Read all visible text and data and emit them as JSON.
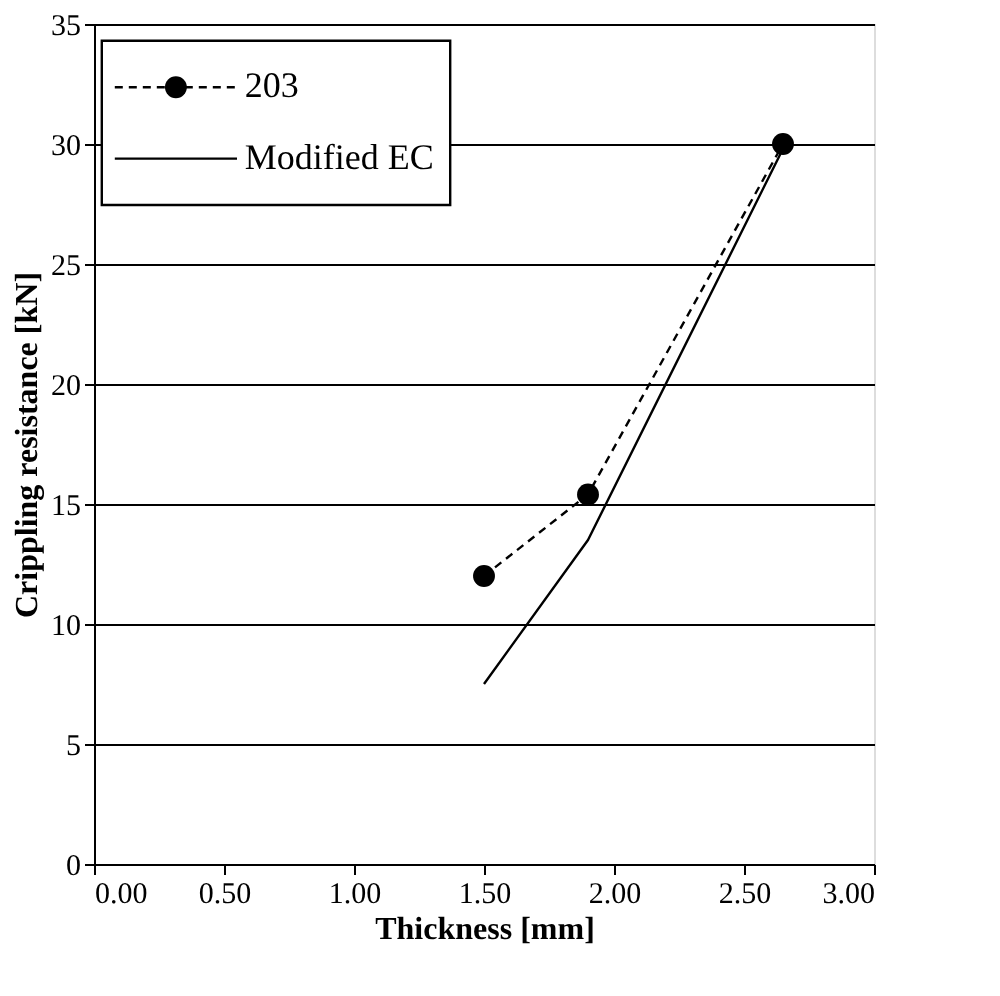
{
  "chart_data": {
    "type": "line",
    "xlabel": "Thickness [mm]",
    "ylabel": "Crippling resistance [kN]",
    "xlim": [
      0,
      3
    ],
    "xticks": [
      {
        "value": 0,
        "label": "0.00"
      },
      {
        "value": 0.5,
        "label": "0.50"
      },
      {
        "value": 1,
        "label": "1.00"
      },
      {
        "value": 1.5,
        "label": "1.50"
      },
      {
        "value": 2,
        "label": "2.00"
      },
      {
        "value": 2.5,
        "label": "2.50"
      },
      {
        "value": 3,
        "label": "3.00"
      }
    ],
    "ylim": [
      0,
      35
    ],
    "yticks": [
      0,
      5,
      10,
      15,
      20,
      25,
      30,
      35
    ],
    "grid": "y",
    "legend": "top left",
    "series": [
      {
        "name": "203",
        "color": "#000000",
        "x": [
          1.5,
          1.9,
          2.65
        ],
        "values": [
          12,
          15.4,
          30
        ],
        "marker": "circle",
        "line_style": "dashed"
      },
      {
        "name": "Modified EC",
        "color": "#000000",
        "x": [
          1.5,
          1.9,
          2.65
        ],
        "values": [
          7.5,
          13.5,
          29.8
        ],
        "marker": "none",
        "line_style": "solid"
      }
    ]
  }
}
